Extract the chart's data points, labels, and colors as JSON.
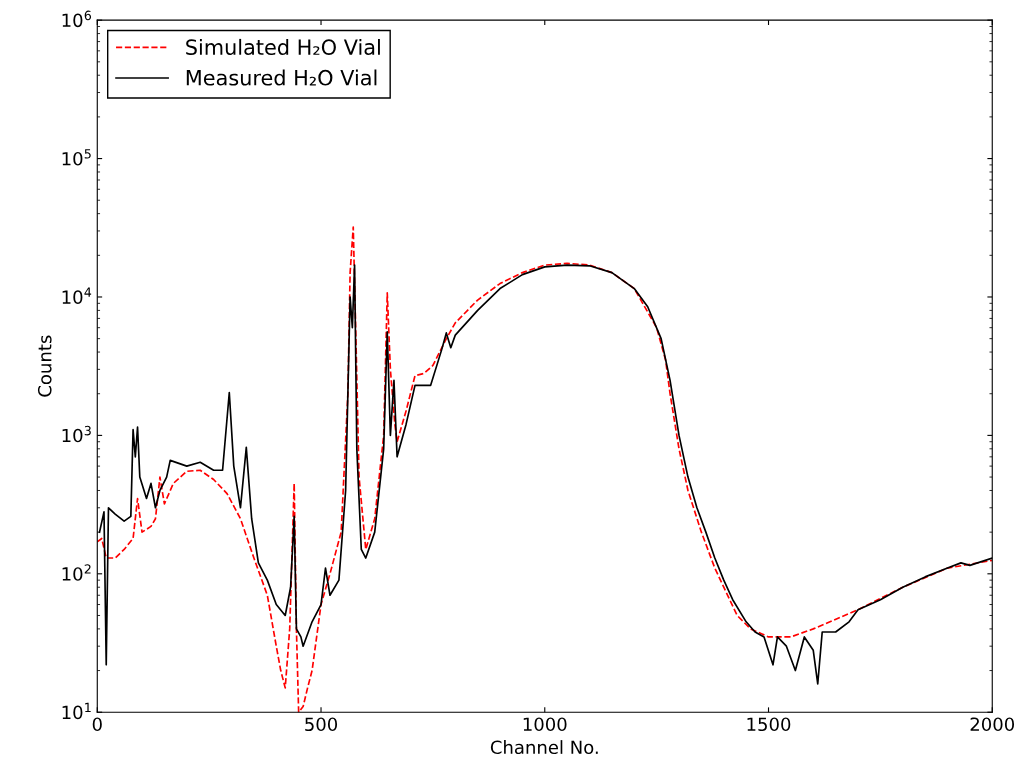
{
  "chart_data": {
    "type": "line",
    "xlabel": "Channel No.",
    "ylabel": "Counts",
    "log": "y",
    "grid": false,
    "legend": "top left",
    "xlim": [
      0,
      2000
    ],
    "xticks": [
      0,
      500,
      1000,
      1500,
      2000
    ],
    "ylim": [
      10,
      1000000
    ],
    "yticks": [
      {
        "value": 10,
        "label": "10$^{1}$"
      },
      {
        "value": 100,
        "label": "10$^{2}$"
      },
      {
        "value": 1000,
        "label": "10$^{3}$"
      },
      {
        "value": 10000,
        "label": "10$^{4}$"
      },
      {
        "value": 100000,
        "label": "10$^{5}$"
      },
      {
        "value": 1000000,
        "label": "10$^{6}$"
      }
    ],
    "series": [
      {
        "name": "Simulated H₂O Vial",
        "color": "#ff0000",
        "line_style": "dashed",
        "x": [
          0,
          10,
          20,
          40,
          60,
          80,
          90,
          100,
          120,
          130,
          140,
          150,
          170,
          200,
          230,
          260,
          290,
          320,
          350,
          380,
          400,
          410,
          420,
          430,
          440,
          445,
          450,
          460,
          470,
          480,
          500,
          520,
          545,
          560,
          565,
          572,
          578,
          585,
          600,
          620,
          640,
          648,
          655,
          665,
          670,
          690,
          710,
          730,
          750,
          780,
          800,
          850,
          900,
          950,
          1000,
          1050,
          1100,
          1150,
          1200,
          1250,
          1270,
          1280,
          1300,
          1320,
          1350,
          1380,
          1400,
          1430,
          1460,
          1500,
          1550,
          1600,
          1700,
          1800,
          1900,
          2000
        ],
        "values": [
          170,
          180,
          130,
          130,
          150,
          180,
          350,
          200,
          220,
          250,
          500,
          320,
          450,
          550,
          560,
          480,
          380,
          250,
          130,
          70,
          30,
          20,
          15,
          40,
          450,
          40,
          10,
          11,
          15,
          20,
          60,
          100,
          200,
          2000,
          15000,
          32000,
          5000,
          500,
          150,
          250,
          1000,
          10700,
          3000,
          1200,
          900,
          1500,
          2700,
          2800,
          3200,
          5000,
          6500,
          9500,
          12500,
          15000,
          17000,
          17500,
          17000,
          15000,
          11500,
          6000,
          3500,
          2000,
          800,
          400,
          200,
          110,
          80,
          50,
          40,
          35,
          35,
          40,
          55,
          80,
          110,
          125
        ]
      },
      {
        "name": "Measured H₂O Vial",
        "color": "#000000",
        "line_style": "solid",
        "x": [
          5,
          15,
          20,
          25,
          40,
          60,
          75,
          80,
          85,
          90,
          95,
          110,
          120,
          130,
          140,
          155,
          163,
          200,
          230,
          260,
          280,
          295,
          305,
          320,
          333,
          345,
          360,
          380,
          400,
          420,
          432,
          440,
          445,
          455,
          460,
          480,
          500,
          510,
          520,
          540,
          555,
          565,
          570,
          575,
          580,
          590,
          600,
          620,
          640,
          648,
          655,
          663,
          670,
          690,
          710,
          730,
          745,
          760,
          770,
          780,
          790,
          800,
          850,
          900,
          950,
          1000,
          1050,
          1100,
          1150,
          1200,
          1230,
          1260,
          1280,
          1300,
          1320,
          1340,
          1360,
          1380,
          1400,
          1420,
          1450,
          1470,
          1490,
          1510,
          1520,
          1540,
          1560,
          1580,
          1600,
          1610,
          1620,
          1650,
          1680,
          1700,
          1750,
          1800,
          1850,
          1900,
          1930,
          1950,
          2000
        ],
        "values": [
          200,
          280,
          22,
          300,
          270,
          240,
          260,
          1100,
          700,
          1150,
          500,
          350,
          450,
          300,
          400,
          500,
          660,
          600,
          640,
          560,
          560,
          2040,
          600,
          300,
          820,
          250,
          120,
          90,
          60,
          50,
          80,
          260,
          40,
          35,
          30,
          45,
          60,
          110,
          70,
          90,
          400,
          10000,
          6000,
          17000,
          800,
          150,
          130,
          200,
          800,
          5600,
          1000,
          2500,
          700,
          1200,
          2300,
          2300,
          2300,
          3300,
          4200,
          5500,
          4300,
          5300,
          8000,
          11500,
          14500,
          16500,
          17000,
          16800,
          15000,
          11500,
          8500,
          5000,
          2500,
          1000,
          500,
          300,
          200,
          130,
          90,
          65,
          45,
          38,
          35,
          22,
          35,
          30,
          20,
          35,
          28,
          16,
          38,
          38,
          45,
          55,
          65,
          80,
          95,
          110,
          120,
          115,
          130
        ]
      }
    ]
  }
}
